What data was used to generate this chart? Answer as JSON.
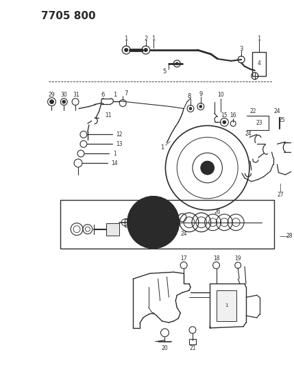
{
  "title": "7705 800",
  "bg_color": "#ffffff",
  "line_color": "#2a2a2a",
  "fig_width": 4.29,
  "fig_height": 5.33,
  "dpi": 100
}
